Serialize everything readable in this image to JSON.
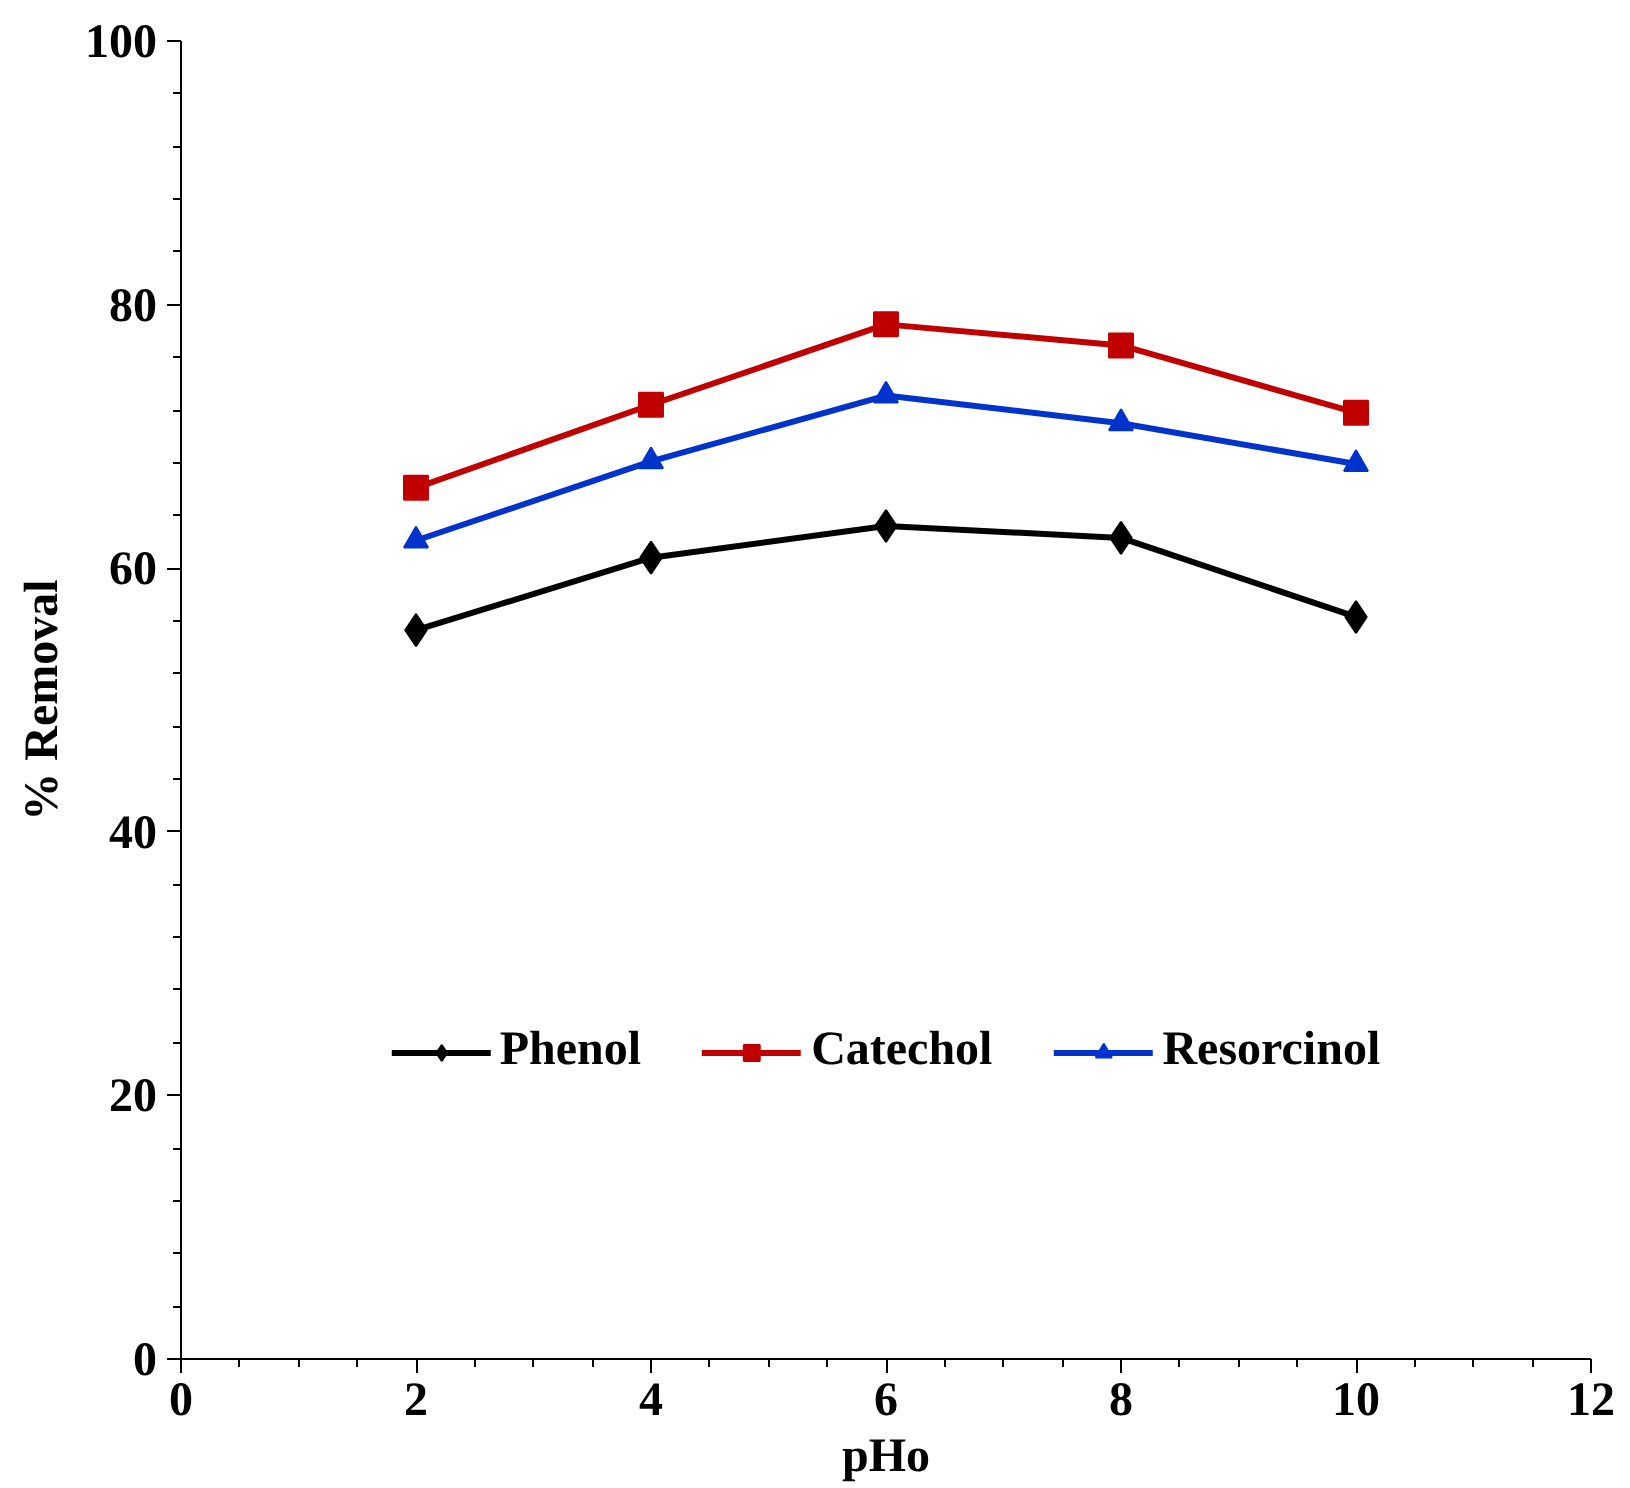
{
  "chart_data": {
    "type": "line",
    "xlabel": "pHo",
    "ylabel": "% Removal",
    "x": [
      2,
      4,
      6,
      8,
      10
    ],
    "series": [
      {
        "name": "Phenol",
        "color": "#000000",
        "marker": "diamond",
        "values": [
          55.3,
          60.8,
          63.2,
          62.3,
          56.3
        ]
      },
      {
        "name": "Catechol",
        "color": "#c00000",
        "marker": "square",
        "values": [
          66.1,
          72.4,
          78.5,
          76.9,
          71.8
        ]
      },
      {
        "name": "Resorcinol",
        "color": "#0033cc",
        "marker": "triangle",
        "values": [
          62.1,
          68.1,
          73.1,
          71.0,
          67.9
        ]
      }
    ],
    "xlim": [
      0,
      12
    ],
    "xticks": [
      0,
      2,
      4,
      6,
      8,
      10,
      12
    ],
    "ylim": [
      0,
      100
    ],
    "yticks": [
      0,
      20,
      40,
      60,
      80,
      100
    ],
    "grid": false,
    "legend": "bottom",
    "line_style": "solid"
  }
}
